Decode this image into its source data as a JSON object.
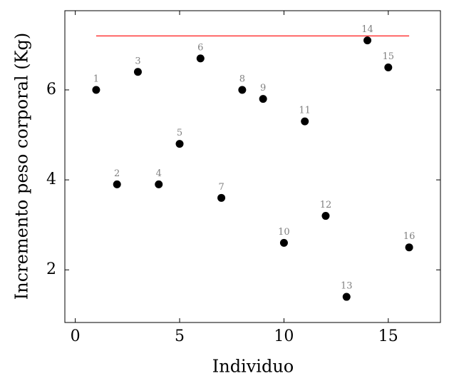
{
  "chart_data": {
    "type": "scatter",
    "x_label": "Individuo",
    "y_label": "Incremento peso corporal (Kg)",
    "x": [
      1,
      2,
      3,
      4,
      5,
      6,
      7,
      8,
      9,
      10,
      11,
      12,
      13,
      14,
      15,
      16
    ],
    "series": [
      {
        "color": "#000000",
        "values": [
          6.0,
          3.9,
          6.4,
          3.9,
          4.8,
          6.7,
          3.6,
          6.0,
          5.8,
          2.6,
          5.3,
          3.2,
          1.4,
          7.1,
          6.5,
          2.5
        ]
      }
    ],
    "reference_line": {
      "y": 7.2,
      "x": [
        1,
        16
      ],
      "color": "#ff0000"
    },
    "xlim": [
      -0.5,
      17.5
    ],
    "ylim": [
      0.83,
      7.76
    ],
    "xticks": [
      0,
      5,
      10,
      15
    ],
    "yticks": [
      2,
      4,
      6
    ]
  }
}
